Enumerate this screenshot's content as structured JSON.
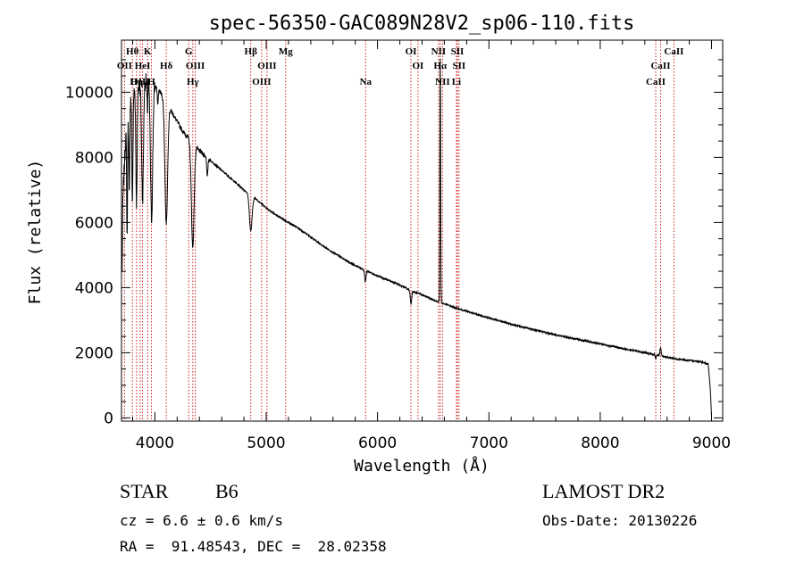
{
  "chart_data": {
    "type": "line",
    "title": "spec-56350-GAC089N28V2_sp06-110.fits",
    "xlabel": "Wavelength (Å)",
    "ylabel": "Flux (relative)",
    "xlim": [
      3700,
      9100
    ],
    "ylim": [
      -100,
      11600
    ],
    "x_ticks": [
      4000,
      5000,
      6000,
      7000,
      8000,
      9000
    ],
    "y_ticks": [
      0,
      2000,
      4000,
      6000,
      8000,
      10000
    ],
    "grid": false,
    "line_color": "#000000",
    "marker_color": "#cc2222",
    "series": [
      {
        "continuum": [
          [
            3700,
            2800
          ],
          [
            3712,
            6700
          ],
          [
            3740,
            8800
          ],
          [
            3780,
            9800
          ],
          [
            3820,
            10100
          ],
          [
            3860,
            10200
          ],
          [
            3900,
            10300
          ],
          [
            3950,
            10400
          ],
          [
            4000,
            10200
          ],
          [
            4050,
            10000
          ],
          [
            4100,
            9700
          ],
          [
            4150,
            9400
          ],
          [
            4200,
            9100
          ],
          [
            4250,
            8800
          ],
          [
            4300,
            8600
          ],
          [
            4350,
            8400
          ],
          [
            4400,
            8200
          ],
          [
            4450,
            8050
          ],
          [
            4500,
            7900
          ],
          [
            4600,
            7600
          ],
          [
            4700,
            7300
          ],
          [
            4800,
            7000
          ],
          [
            4900,
            6750
          ],
          [
            5000,
            6450
          ],
          [
            5100,
            6200
          ],
          [
            5200,
            6000
          ],
          [
            5300,
            5800
          ],
          [
            5400,
            5550
          ],
          [
            5500,
            5300
          ],
          [
            5600,
            5080
          ],
          [
            5700,
            4870
          ],
          [
            5800,
            4680
          ],
          [
            5900,
            4520
          ],
          [
            6000,
            4360
          ],
          [
            6100,
            4220
          ],
          [
            6200,
            4080
          ],
          [
            6300,
            3900
          ],
          [
            6400,
            3780
          ],
          [
            6500,
            3620
          ],
          [
            6600,
            3500
          ],
          [
            6700,
            3380
          ],
          [
            6800,
            3270
          ],
          [
            6900,
            3170
          ],
          [
            7000,
            3070
          ],
          [
            7100,
            2970
          ],
          [
            7200,
            2880
          ],
          [
            7300,
            2790
          ],
          [
            7400,
            2710
          ],
          [
            7500,
            2630
          ],
          [
            7600,
            2550
          ],
          [
            7700,
            2480
          ],
          [
            7800,
            2410
          ],
          [
            7900,
            2340
          ],
          [
            8000,
            2270
          ],
          [
            8100,
            2200
          ],
          [
            8200,
            2130
          ],
          [
            8300,
            2070
          ],
          [
            8400,
            2000
          ],
          [
            8500,
            1930
          ],
          [
            8600,
            1860
          ],
          [
            8700,
            1800
          ],
          [
            8800,
            1760
          ],
          [
            8900,
            1730
          ],
          [
            8970,
            1650
          ],
          [
            8990,
            800
          ],
          [
            9000,
            0
          ]
        ],
        "absorption_features": [
          [
            3750,
            3500,
            4
          ],
          [
            3770,
            2800,
            4
          ],
          [
            3798,
            3200,
            5
          ],
          [
            3835,
            3500,
            6
          ],
          [
            3889,
            3600,
            8
          ],
          [
            3933,
            900,
            4
          ],
          [
            3970,
            4200,
            10
          ],
          [
            4026,
            500,
            4
          ],
          [
            4102,
            3700,
            12
          ],
          [
            4340,
            3200,
            12
          ],
          [
            4471,
            600,
            5
          ],
          [
            4861,
            1100,
            12
          ],
          [
            5890,
            350,
            6
          ],
          [
            6300,
            400,
            6
          ],
          [
            8498,
            100,
            4
          ]
        ],
        "emission_features": [
          [
            6563,
            7500,
            3.5
          ],
          [
            8542,
            250,
            6
          ]
        ]
      }
    ],
    "line_markers": [
      {
        "label": "Hθ",
        "x": 3798,
        "row": 0
      },
      {
        "label": "K",
        "x": 3934,
        "row": 0
      },
      {
        "label": "G",
        "x": 4304,
        "row": 0
      },
      {
        "label": "Hβ",
        "x": 4861,
        "row": 0
      },
      {
        "label": "Mg",
        "x": 5175,
        "row": 0
      },
      {
        "label": "OI",
        "x": 6300,
        "row": 0
      },
      {
        "label": "NII",
        "x": 6548,
        "row": 0
      },
      {
        "label": "SII",
        "x": 6717,
        "row": 0
      },
      {
        "label": "CaII",
        "x": 8662,
        "row": 0
      },
      {
        "label": "OII",
        "x": 3727,
        "row": 1
      },
      {
        "label": "HeI",
        "x": 3889,
        "row": 1
      },
      {
        "label": "Hδ",
        "x": 4102,
        "row": 1
      },
      {
        "label": "OIII",
        "x": 4363,
        "row": 1
      },
      {
        "label": "OIII",
        "x": 5007,
        "row": 1
      },
      {
        "label": "OI",
        "x": 6363,
        "row": 1
      },
      {
        "label": "Hα",
        "x": 6563,
        "row": 1
      },
      {
        "label": "SII",
        "x": 6731,
        "row": 1
      },
      {
        "label": "CaII",
        "x": 8542,
        "row": 1
      },
      {
        "label": "OIII",
        "x": 3868,
        "row": 2
      },
      {
        "label": "Hη",
        "x": 3835,
        "row": 2
      },
      {
        "label": "H",
        "x": 3969,
        "row": 2
      },
      {
        "label": "Hγ",
        "x": 4340,
        "row": 2
      },
      {
        "label": "OIII",
        "x": 4959,
        "row": 2
      },
      {
        "label": "Na",
        "x": 5893,
        "row": 2
      },
      {
        "label": "NII",
        "x": 6584,
        "row": 2
      },
      {
        "label": "Li",
        "x": 6708,
        "row": 2
      },
      {
        "label": "CaII",
        "x": 8498,
        "row": 2
      }
    ],
    "marker_lines": [
      3727,
      3798,
      3835,
      3868,
      3889,
      3934,
      3969,
      4102,
      4304,
      4340,
      4363,
      4861,
      4959,
      5007,
      5175,
      5893,
      6300,
      6363,
      6548,
      6563,
      6584,
      6708,
      6717,
      6731,
      8498,
      8542,
      8662
    ]
  },
  "info": {
    "object_class": "STAR",
    "subclass": "B6",
    "survey": "LAMOST DR2",
    "cz": "cz = 6.6 ± 0.6 km/s",
    "obs_date": "Obs-Date: 20130226",
    "coords": "RA =  91.48543, DEC =  28.02358"
  }
}
